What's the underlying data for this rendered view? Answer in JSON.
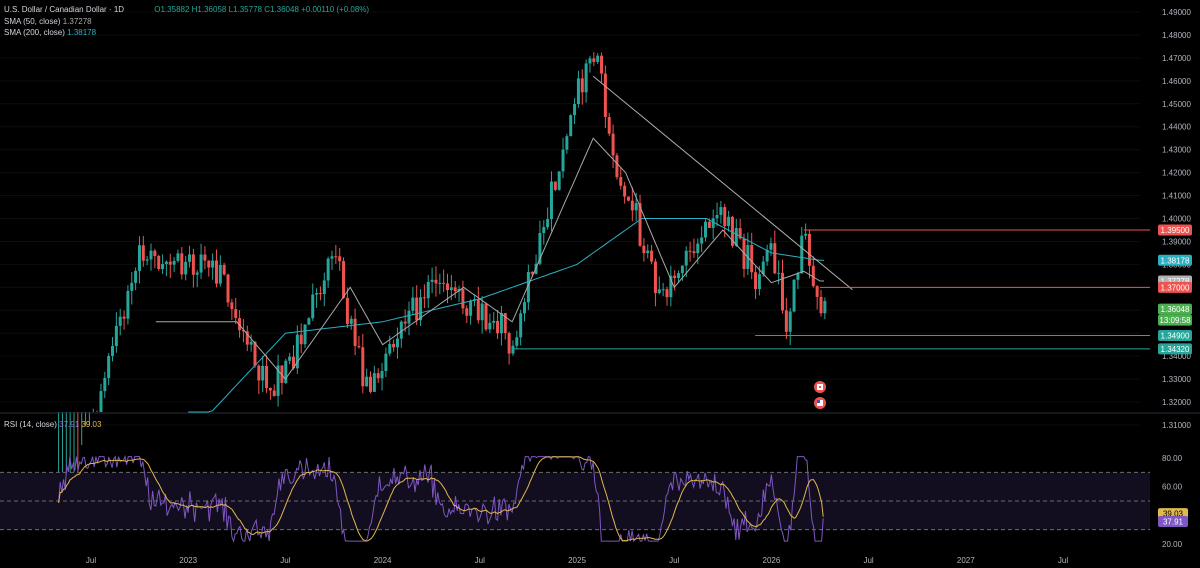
{
  "header": {
    "symbol": "U.S. Dollar / Canadian Dollar · 1D",
    "open": "O1.35882",
    "high": "H1.36058",
    "low": "L1.35778",
    "close": "C1.36048",
    "change": "+0.00110 (+0.08%)"
  },
  "indicators": {
    "sma50": {
      "label": "SMA (50, close)",
      "value": "1.37278",
      "color": "#a9a9a9"
    },
    "sma200": {
      "label": "SMA (200, close)",
      "value": "1.38178",
      "color": "#2bb0c3"
    },
    "rsi": {
      "label": "RSI (14, close)",
      "value": "37.91",
      "ma_value": "39.03",
      "color": "#7e57c2",
      "ma_color": "#e0b84f"
    }
  },
  "colors": {
    "up": "#26a69a",
    "down": "#ef5350",
    "background": "#000000",
    "trendline": "#b0b0b0"
  },
  "chart_data": [
    {
      "type": "candlestick",
      "title": "U.S. Dollar / Canadian Dollar · 1D",
      "y_axis_ticks": [
        "1.49000",
        "1.48000",
        "1.47000",
        "1.46000",
        "1.45000",
        "1.44000",
        "1.43000",
        "1.42000",
        "1.41000",
        "1.40000",
        "1.39000",
        "1.38000",
        "1.37000",
        "1.36000",
        "1.35000",
        "1.34000",
        "1.33000",
        "1.32000",
        "1.31000"
      ],
      "ylim": [
        1.305,
        1.49
      ],
      "x_axis_ticks": [
        "Jul",
        "2023",
        "Jul",
        "2024",
        "Jul",
        "2025",
        "Jul",
        "2026",
        "Jul",
        "2027",
        "Jul"
      ],
      "price_key_points": [
        {
          "date": "2022-05",
          "close": 1.26
        },
        {
          "date": "2022-10",
          "close": 1.385
        },
        {
          "date": "2023-03",
          "close": 1.375
        },
        {
          "date": "2023-06",
          "close": 1.32
        },
        {
          "date": "2023-10",
          "close": 1.385
        },
        {
          "date": "2023-12",
          "close": 1.325
        },
        {
          "date": "2024-04",
          "close": 1.375
        },
        {
          "date": "2024-09",
          "close": 1.345
        },
        {
          "date": "2025-01",
          "close": 1.455
        },
        {
          "date": "2025-02",
          "close": 1.475
        },
        {
          "date": "2025-03",
          "close": 1.435
        },
        {
          "date": "2025-06",
          "close": 1.365
        },
        {
          "date": "2025-10",
          "close": 1.405
        },
        {
          "date": "2025-12",
          "close": 1.373
        },
        {
          "date": "2026-01",
          "close": 1.385
        },
        {
          "date": "2026-02",
          "close": 1.355
        },
        {
          "date": "2026-03",
          "close": 1.395
        },
        {
          "date": "2026-04",
          "close": 1.3605
        }
      ],
      "sma50_key_points": [
        {
          "date": "2022-11",
          "close": 1.355
        },
        {
          "date": "2023-04",
          "close": 1.355
        },
        {
          "date": "2023-07",
          "close": 1.33
        },
        {
          "date": "2023-11",
          "close": 1.37
        },
        {
          "date": "2024-01",
          "close": 1.345
        },
        {
          "date": "2024-06",
          "close": 1.37
        },
        {
          "date": "2024-09",
          "close": 1.355
        },
        {
          "date": "2025-02",
          "close": 1.435
        },
        {
          "date": "2025-04",
          "close": 1.42
        },
        {
          "date": "2025-07",
          "close": 1.37
        },
        {
          "date": "2025-10",
          "close": 1.395
        },
        {
          "date": "2026-01",
          "close": 1.372
        },
        {
          "date": "2026-03",
          "close": 1.377
        },
        {
          "date": "2026-04",
          "close": 1.37278
        }
      ],
      "sma200_key_points": [
        {
          "date": "2023-01",
          "close": 1.305
        },
        {
          "date": "2023-07",
          "close": 1.35
        },
        {
          "date": "2024-01",
          "close": 1.355
        },
        {
          "date": "2024-07",
          "close": 1.365
        },
        {
          "date": "2025-01",
          "close": 1.38
        },
        {
          "date": "2025-05",
          "close": 1.4
        },
        {
          "date": "2025-09",
          "close": 1.4
        },
        {
          "date": "2026-01",
          "close": 1.385
        },
        {
          "date": "2026-04",
          "close": 1.38178
        }
      ],
      "trendline": {
        "from": {
          "date": "2025-02",
          "value": 1.462
        },
        "to": {
          "date": "2026-06",
          "value": 1.369
        }
      },
      "horizontal_levels": [
        {
          "value": 1.395,
          "label": "1.39500",
          "color": "#ef5350"
        },
        {
          "value": 1.37,
          "label": "1.37000",
          "color": "#ef5350"
        },
        {
          "value": 1.349,
          "label": "1.34900",
          "color": "#26a69a"
        },
        {
          "value": 1.3432,
          "label": "1.34320",
          "color": "#26a69a"
        }
      ],
      "price_labels": [
        {
          "value": 1.38178,
          "text": "1.38178",
          "color": "#2bb0c3"
        },
        {
          "value": 1.37278,
          "text": "1.37278",
          "color": "#b2b2b2"
        },
        {
          "value": 1.36048,
          "text": "1.36048",
          "color": "#4caf50"
        }
      ],
      "countdown": "13:09:58"
    },
    {
      "type": "line",
      "title": "RSI (14, close)",
      "y_axis_ticks": [
        "80.00",
        "60.00",
        "20.00"
      ],
      "ylim": [
        17,
        86
      ],
      "bands": [
        70,
        50,
        30
      ],
      "series": [
        {
          "name": "RSI (14, close)",
          "last": 37.91,
          "color": "#7e57c2"
        },
        {
          "name": "RSI-based MA",
          "last": 39.03,
          "color": "#e0b84f"
        }
      ],
      "labels": [
        {
          "value": 39.03,
          "text": "39.03",
          "color": "#e0b84f"
        },
        {
          "value": 37.91,
          "text": "37.91",
          "color": "#7e57c2"
        }
      ]
    }
  ]
}
